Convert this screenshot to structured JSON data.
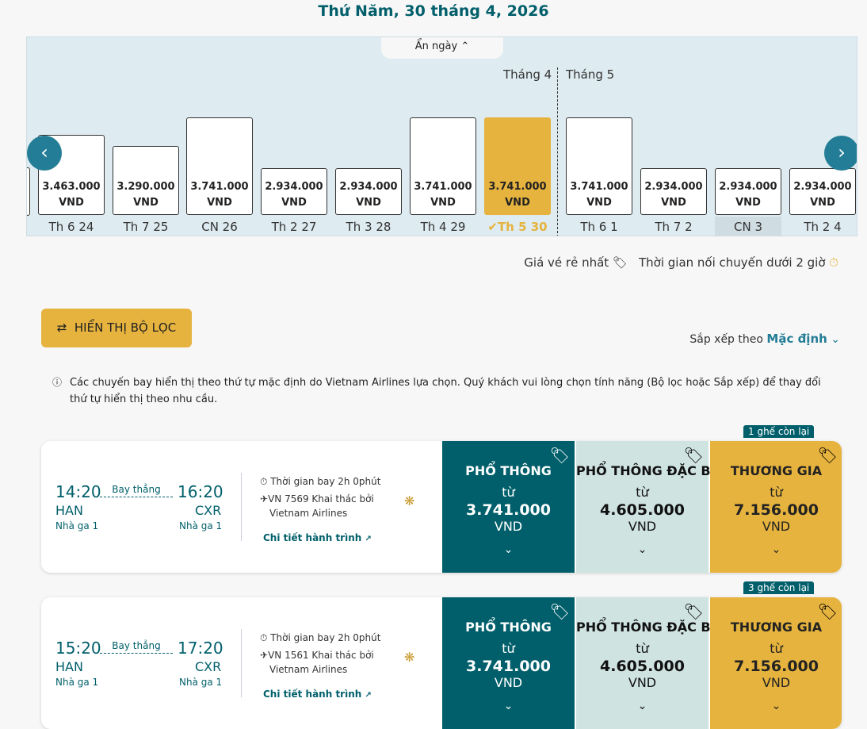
{
  "header": {
    "title": "Thứ Năm, 30 tháng 4, 2026"
  },
  "calendar": {
    "hide_label": "Ẩn ngày",
    "months": [
      "Tháng 4",
      "Tháng 5"
    ],
    "days": [
      {
        "label": "Th 6 24",
        "price": "3.463.000",
        "value": 3463000,
        "currency": "VND"
      },
      {
        "label": "Th 7 25",
        "price": "3.290.000",
        "value": 3290000,
        "currency": "VND"
      },
      {
        "label": "CN 26",
        "price": "3.741.000",
        "value": 3741000,
        "currency": "VND"
      },
      {
        "label": "Th 2 27",
        "price": "2.934.000",
        "value": 2934000,
        "currency": "VND"
      },
      {
        "label": "Th 3 28",
        "price": "2.934.000",
        "value": 2934000,
        "currency": "VND"
      },
      {
        "label": "Th 4 29",
        "price": "3.741.000",
        "value": 3741000,
        "currency": "VND"
      },
      {
        "label": "Th 5 30",
        "price": "3.741.000",
        "value": 3741000,
        "currency": "VND",
        "selected": true
      },
      {
        "label": "Th 6 1",
        "price": "3.741.000",
        "value": 3741000,
        "currency": "VND"
      },
      {
        "label": "Th 7 2",
        "price": "2.934.000",
        "value": 2934000,
        "currency": "VND"
      },
      {
        "label": "CN 3",
        "price": "2.934.000",
        "value": 2934000,
        "currency": "VND",
        "highlight": true
      },
      {
        "label": "Th 2 4",
        "price": "2.934.000",
        "value": 2934000,
        "currency": "VND"
      }
    ]
  },
  "legend": {
    "cheapest": "Giá vé rẻ nhất",
    "short_connection": "Thời gian nối chuyến dưới 2 giờ"
  },
  "filter_button": "HIỂN THỊ BỘ LỌC",
  "sort": {
    "label": "Sắp xếp theo",
    "value": "Mặc định"
  },
  "notice": "Các chuyến bay hiển thị theo thứ tự mặc định do Vietnam Airlines lựa chọn. Quý khách vui lòng chọn tính năng (Bộ lọc hoặc Sắp xếp) để thay đổi thứ tự hiển thị theo nhu cầu.",
  "flights": [
    {
      "dep": "14:20",
      "arr": "16:20",
      "from": "HAN",
      "to": "CXR",
      "dep_terminal": "Nhà ga 1",
      "arr_terminal": "Nhà ga 1",
      "type": "Bay thẳng",
      "duration": "Thời gian bay 2h 0phút",
      "flight": "VN 7569 Khai thác bởi",
      "operator": "Vietnam Airlines",
      "details": "Chi tiết hành trình",
      "badge": "1 ghế còn lại",
      "fares": [
        {
          "name": "PHỔ THÔNG",
          "from": "từ",
          "price": "3.741.000",
          "currency": "VND"
        },
        {
          "name": "PHỔ THÔNG ĐẶC BIỆT",
          "from": "từ",
          "price": "4.605.000",
          "currency": "VND"
        },
        {
          "name": "THƯƠNG GIA",
          "from": "từ",
          "price": "7.156.000",
          "currency": "VND"
        }
      ]
    },
    {
      "dep": "15:20",
      "arr": "17:20",
      "from": "HAN",
      "to": "CXR",
      "dep_terminal": "Nhà ga 1",
      "arr_terminal": "Nhà ga 1",
      "type": "Bay thẳng",
      "duration": "Thời gian bay 2h 0phút",
      "flight": "VN 1561 Khai thác bởi",
      "operator": "Vietnam Airlines",
      "details": "Chi tiết hành trình",
      "badge": "3 ghế còn lại",
      "fares": [
        {
          "name": "PHỔ THÔNG",
          "from": "từ",
          "price": "3.741.000",
          "currency": "VND"
        },
        {
          "name": "PHỔ THÔNG ĐẶC BIỆT",
          "from": "từ",
          "price": "4.605.000",
          "currency": "VND"
        },
        {
          "name": "THƯƠNG GIA",
          "from": "từ",
          "price": "7.156.000",
          "currency": "VND"
        }
      ]
    }
  ],
  "colors": {
    "brand": "#005f6b",
    "accent": "#e6b33e",
    "premium": "#cfe3e1"
  }
}
